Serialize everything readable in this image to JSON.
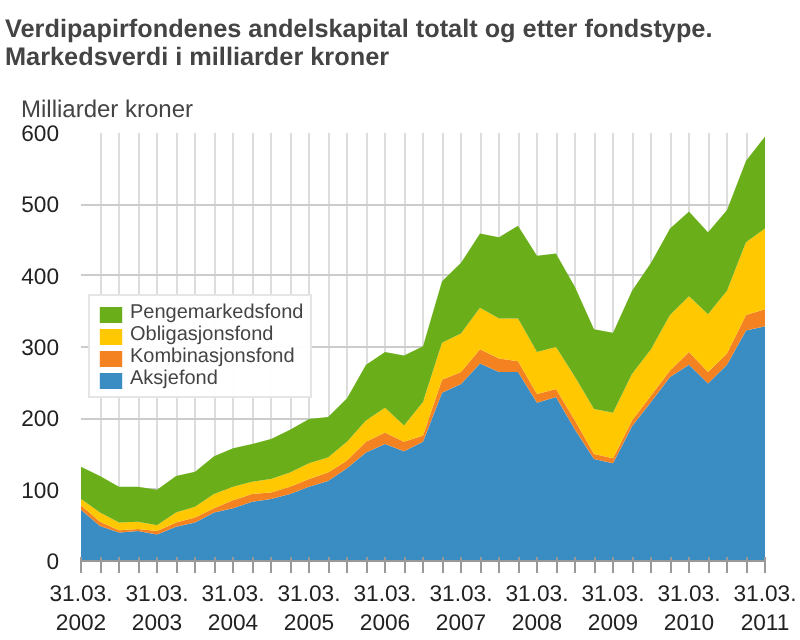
{
  "chart_data": {
    "type": "area",
    "stacked": true,
    "title": "Verdipapirfondenes andelskapital totalt og etter fondstype. Markedsverdi i milliarder kroner",
    "ylabel": "Milliarder kroner",
    "categories": [
      "31.03.\n2002",
      null,
      null,
      null,
      "31.03.\n2003",
      null,
      null,
      null,
      "31.03.\n2004",
      null,
      null,
      null,
      "31.03.\n2005",
      null,
      null,
      null,
      "31.03.\n2006",
      null,
      null,
      null,
      "31.03.\n2007",
      null,
      null,
      null,
      "31.03.\n2008",
      null,
      null,
      null,
      "31.03.\n2009",
      null,
      null,
      null,
      "31.03.\n2010",
      null,
      null,
      null,
      "31.03.\n2011"
    ],
    "series": [
      {
        "name": "Aksjefond",
        "color": "#3a8dc3",
        "values": [
          72,
          49,
          40,
          42,
          37,
          48,
          54,
          68,
          74,
          83,
          87,
          94,
          104,
          112,
          130,
          152,
          164,
          154,
          167,
          236,
          248,
          277,
          265,
          265,
          222,
          230,
          184,
          143,
          137,
          189,
          223,
          258,
          275,
          249,
          275,
          323,
          329
        ]
      },
      {
        "name": "Kombinasjonsfond",
        "color": "#f58220",
        "values": [
          6,
          6,
          3,
          3,
          5,
          6,
          7,
          6,
          11,
          11,
          9,
          10,
          11,
          12,
          11,
          15,
          16,
          13,
          9,
          18,
          17,
          20,
          19,
          15,
          12,
          11,
          13,
          7,
          7,
          8,
          9,
          9,
          18,
          16,
          16,
          22,
          24
        ]
      },
      {
        "name": "Obligasjonsfond",
        "color": "#ffc800",
        "values": [
          9,
          13,
          11,
          10,
          8,
          14,
          15,
          20,
          19,
          17,
          19,
          20,
          22,
          21,
          26,
          30,
          35,
          23,
          47,
          52,
          54,
          58,
          56,
          60,
          59,
          59,
          61,
          63,
          64,
          65,
          65,
          78,
          78,
          81,
          88,
          102,
          113
        ]
      },
      {
        "name": "Pengemarkedsfond",
        "color": "#6aaf1a",
        "values": [
          45,
          51,
          50,
          49,
          50,
          51,
          49,
          53,
          54,
          53,
          56,
          60,
          62,
          57,
          61,
          78,
          78,
          98,
          78,
          86,
          99,
          104,
          114,
          130,
          135,
          131,
          126,
          112,
          112,
          117,
          121,
          121,
          119,
          115,
          113,
          114,
          129
        ]
      }
    ],
    "ylim": [
      0,
      600
    ],
    "yticks": [
      0,
      100,
      200,
      300,
      400,
      500,
      600
    ],
    "grid": true,
    "legend": "left"
  }
}
